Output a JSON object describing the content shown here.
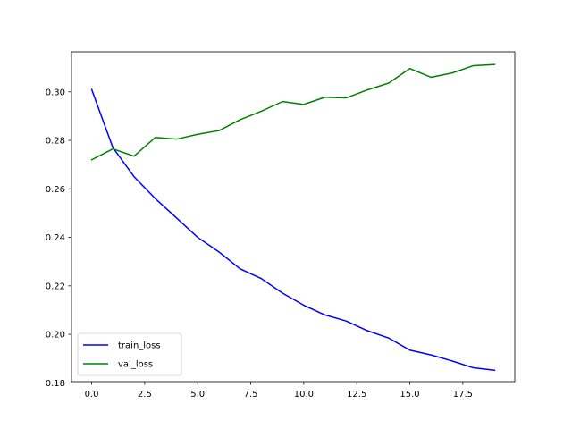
{
  "chart_data": {
    "type": "line",
    "title": "",
    "xlabel": "",
    "ylabel": "",
    "x": [
      0,
      1,
      2,
      3,
      4,
      5,
      6,
      7,
      8,
      9,
      10,
      11,
      12,
      13,
      14,
      15,
      16,
      17,
      18,
      19
    ],
    "xlim": [
      -0.95,
      19.95
    ],
    "ylim": [
      0.1805,
      0.3165
    ],
    "xticks": [
      0,
      2.5,
      5,
      7.5,
      10,
      12.5,
      15,
      17.5
    ],
    "xtick_labels": [
      "0.0",
      "2.5",
      "5.0",
      "7.5",
      "10.0",
      "12.5",
      "15.0",
      "17.5"
    ],
    "yticks": [
      0.18,
      0.2,
      0.22,
      0.24,
      0.26,
      0.28,
      0.3
    ],
    "ytick_labels": [
      "0.18",
      "0.20",
      "0.22",
      "0.24",
      "0.26",
      "0.28",
      "0.30"
    ],
    "grid": false,
    "legend_position": "lower-left",
    "series": [
      {
        "name": "train_loss",
        "color": "#0000ff",
        "values": [
          0.301,
          0.277,
          0.265,
          0.256,
          0.248,
          0.24,
          0.234,
          0.227,
          0.223,
          0.217,
          0.212,
          0.208,
          0.2055,
          0.2015,
          0.1985,
          0.1935,
          0.1915,
          0.189,
          0.1862,
          0.1852
        ]
      },
      {
        "name": "val_loss",
        "color": "#008000",
        "values": [
          0.272,
          0.2765,
          0.2735,
          0.2812,
          0.2805,
          0.2825,
          0.284,
          0.2885,
          0.292,
          0.296,
          0.2948,
          0.2978,
          0.2975,
          0.3008,
          0.3036,
          0.3096,
          0.306,
          0.3078,
          0.3108,
          0.3113
        ]
      }
    ]
  }
}
